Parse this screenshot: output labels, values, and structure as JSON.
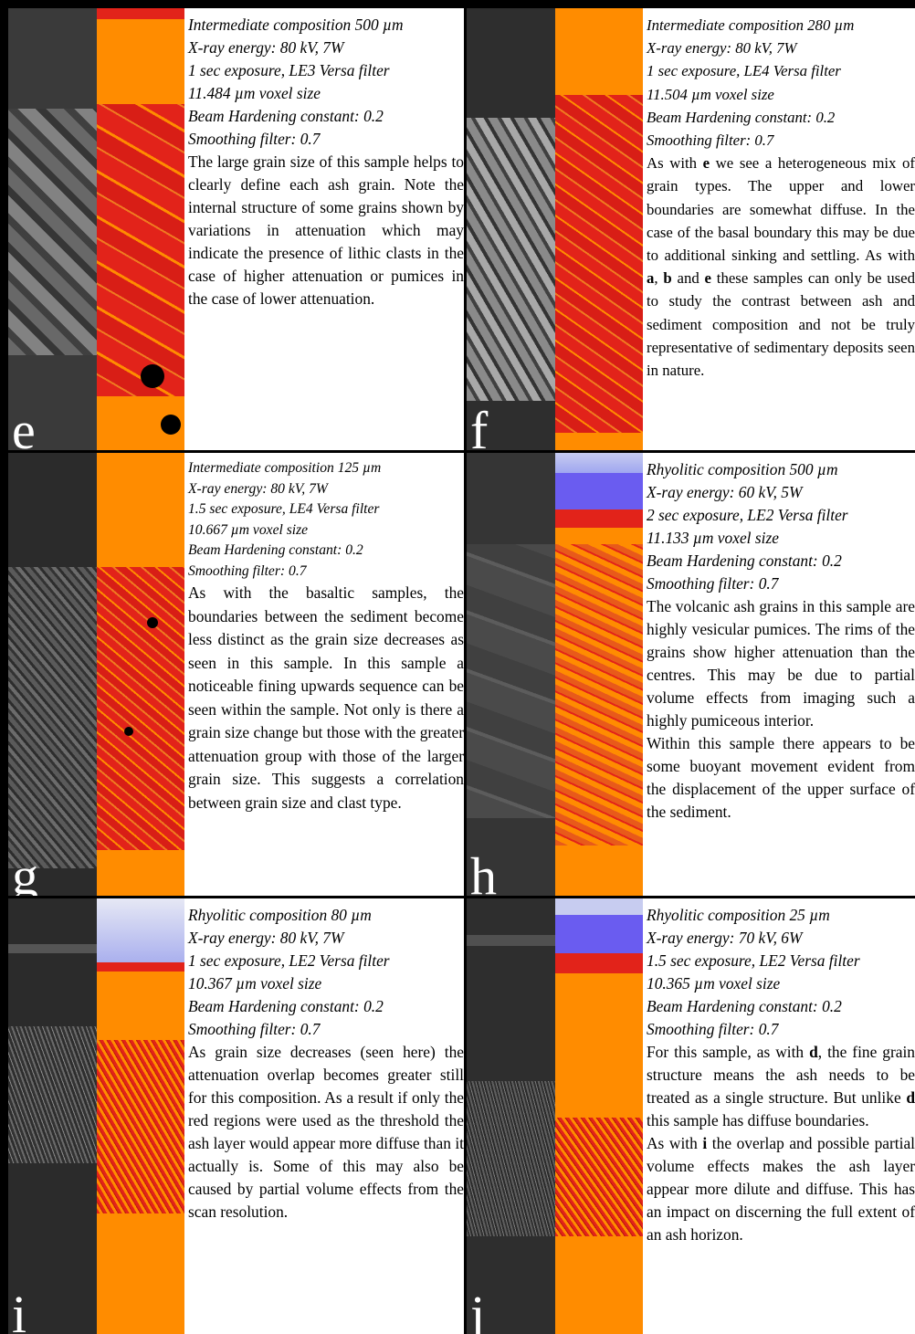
{
  "panels": {
    "e": {
      "letter": "e",
      "meta": [
        "Intermediate composition 500 µm",
        "X-ray energy: 80 kV, 7W",
        "1 sec exposure, LE3 Versa filter",
        "11.484 µm voxel size",
        "Beam Hardening constant: 0.2",
        "Smoothing filter: 0.7"
      ],
      "body": "The large grain size of this sample helps to clearly define each ash grain. Note the internal structure of some grains shown by variations in attenuation which may indicate the presence of lithic clasts in the case of higher attenuation or pumices in the case of lower attenuation."
    },
    "f": {
      "letter": "f",
      "meta": [
        "Intermediate composition 280 µm",
        "X-ray energy: 80 kV, 7W",
        "1 sec exposure, LE4 Versa filter",
        "11.504 µm voxel size",
        "Beam Hardening constant: 0.2",
        "Smoothing filter: 0.7"
      ],
      "body_parts": [
        "As with ",
        "e",
        " we see a heterogeneous mix of grain types. The upper and lower boundaries are somewhat diffuse. In the case of the basal boundary this may be due to additional sinking and settling. As with ",
        "a",
        ", ",
        "b",
        " and ",
        "e",
        " these samples can only be used to study the contrast between ash and sediment composition and not be truly representative of sedimentary deposits seen in nature."
      ]
    },
    "g": {
      "letter": "g",
      "meta": [
        "Intermediate composition 125 µm",
        "X-ray energy: 80 kV, 7W",
        "1.5 sec exposure, LE4 Versa filter",
        "10.667 µm voxel size",
        "Beam Hardening constant: 0.2",
        "Smoothing filter: 0.7"
      ],
      "body": "As with the basaltic samples, the boundaries between the sediment become less distinct as the grain size decreases as seen in this sample. In this sample a noticeable fining upwards sequence can be seen within the sample. Not only is there a grain size change but those with the greater attenuation group with those of the larger grain size. This suggests a correlation between grain size and clast type."
    },
    "h": {
      "letter": "h",
      "meta": [
        "Rhyolitic composition 500 µm",
        "X-ray energy: 60 kV, 5W",
        "2 sec exposure, LE2 Versa filter",
        "11.133 µm voxel size",
        "Beam Hardening constant: 0.2",
        "Smoothing filter: 0.7"
      ],
      "body": "The volcanic ash grains in this sample are highly vesicular pumices. The rims of the grains show higher attenuation than the centres. This may be due to partial volume effects from imaging such a highly pumiceous interior.",
      "body2": "Within this sample there appears to be some buoyant movement evident from the displacement of the upper surface of the sediment."
    },
    "i": {
      "letter": "i",
      "meta": [
        "Rhyolitic composition 80 µm",
        "X-ray energy: 80 kV, 7W",
        "1 sec exposure, LE2 Versa filter",
        "10.367 µm voxel size",
        "Beam Hardening constant: 0.2",
        "Smoothing filter: 0.7"
      ],
      "body": "As grain size decreases (seen here) the attenuation overlap becomes greater still for this composition. As a result if only the red regions were used as the threshold the ash layer would appear more diffuse than it actually is. Some of this may also be caused by partial volume effects from the scan resolution."
    },
    "j": {
      "letter": "j",
      "meta": [
        "Rhyolitic composition 25 µm",
        "X-ray energy: 70 kV, 6W",
        "1.5 sec exposure, LE2 Versa filter",
        "10.365 µm voxel size",
        "Beam Hardening constant: 0.2",
        "Smoothing filter: 0.7"
      ],
      "body_parts": [
        "For this sample, as with ",
        "d",
        ", the fine grain structure means the ash needs to be treated as a single structure. But unlike ",
        "d",
        " this sample has diffuse boundaries."
      ],
      "body2_parts": [
        "As with ",
        "i",
        " the overlap and possible partial volume effects makes the ash layer appear more dilute and diffuse. This has an impact on discerning the full extent of an ash horizon."
      ]
    }
  },
  "colors": {
    "orange": "#ff8c00",
    "red": "#e2231a",
    "blue": "#6a5cf0",
    "pale_blue": "#c7ccf0",
    "ct_gray": "#2b2b2b"
  }
}
